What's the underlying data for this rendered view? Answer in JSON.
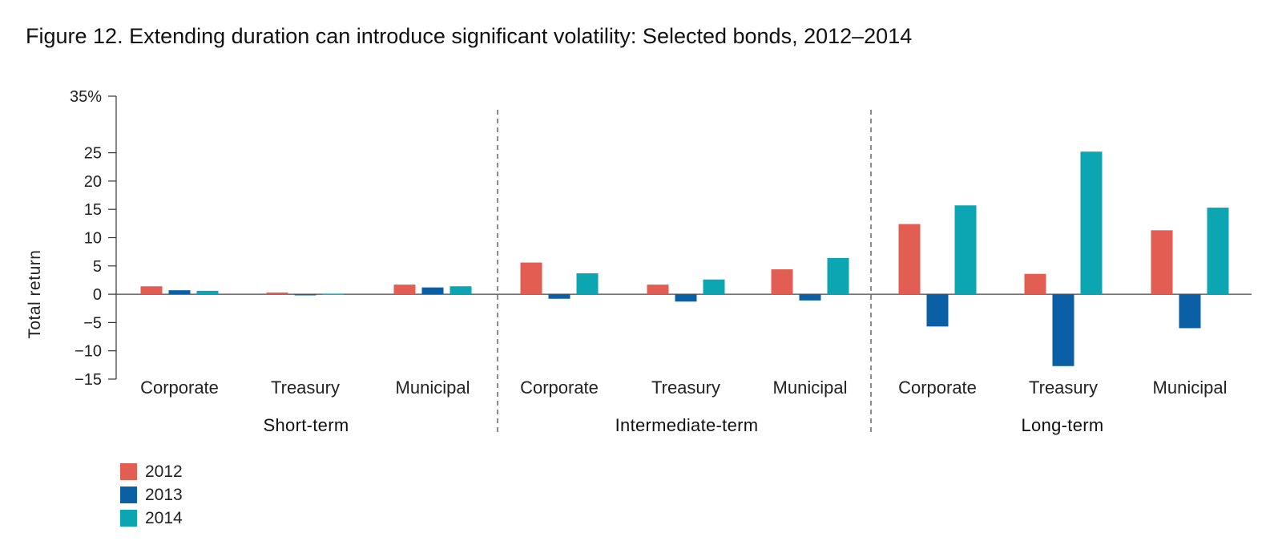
{
  "title": "Figure 12. Extending duration can introduce significant volatility: Selected bonds, 2012–2014",
  "chart_data": {
    "type": "bar",
    "title": "Figure 12. Extending duration can introduce significant volatility: Selected bonds, 2012–2014",
    "ylabel": "Total return",
    "xlabel": "",
    "ylim": [
      -15,
      35
    ],
    "yticks": [
      {
        "value": 35,
        "label": "35%"
      },
      {
        "value": 25,
        "label": "25"
      },
      {
        "value": 20,
        "label": "20"
      },
      {
        "value": 15,
        "label": "15"
      },
      {
        "value": 10,
        "label": "10"
      },
      {
        "value": 5,
        "label": "5"
      },
      {
        "value": 0,
        "label": "0"
      },
      {
        "value": -5,
        "label": "−5"
      },
      {
        "value": -10,
        "label": "−10"
      },
      {
        "value": -15,
        "label": "−15"
      }
    ],
    "groups": [
      {
        "name": "Short-term",
        "categories": [
          "Corporate",
          "Treasury",
          "Municipal"
        ]
      },
      {
        "name": "Intermediate-term",
        "categories": [
          "Corporate",
          "Treasury",
          "Municipal"
        ]
      },
      {
        "name": "Long-term",
        "categories": [
          "Corporate",
          "Treasury",
          "Municipal"
        ]
      }
    ],
    "categories": [
      "Corporate",
      "Treasury",
      "Municipal",
      "Corporate",
      "Treasury",
      "Municipal",
      "Corporate",
      "Treasury",
      "Municipal"
    ],
    "series": [
      {
        "name": "2012",
        "color": "#e25e52",
        "values": [
          1.4,
          0.3,
          1.7,
          5.6,
          1.7,
          4.4,
          12.4,
          3.6,
          11.3
        ]
      },
      {
        "name": "2013",
        "color": "#0a5fa5",
        "values": [
          0.7,
          -0.2,
          1.2,
          -0.8,
          -1.3,
          -1.1,
          -5.7,
          -12.7,
          -6.0
        ]
      },
      {
        "name": "2014",
        "color": "#0ca5b2",
        "values": [
          0.6,
          0.1,
          1.4,
          3.7,
          2.6,
          6.4,
          15.7,
          25.2,
          15.3
        ]
      }
    ],
    "legend_position": "bottom-left",
    "grid": false
  }
}
